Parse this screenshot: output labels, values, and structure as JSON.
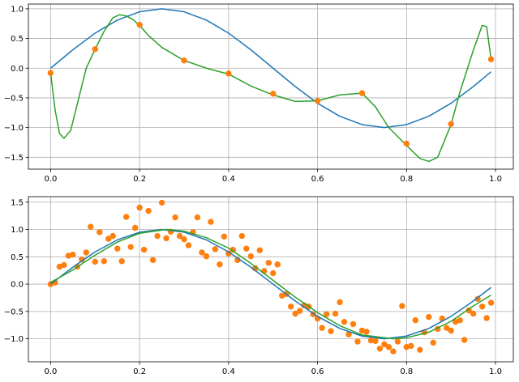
{
  "chart_data": [
    {
      "type": "line",
      "title": "",
      "xlabel": "",
      "ylabel": "",
      "xlim": [
        -0.05,
        1.04
      ],
      "ylim": [
        -1.7,
        1.08
      ],
      "xticks": [
        0.0,
        0.2,
        0.4,
        0.6,
        0.8,
        1.0
      ],
      "xtick_labels": [
        "0.0",
        "0.2",
        "0.4",
        "0.6",
        "0.8",
        "1.0"
      ],
      "yticks": [
        1.0,
        0.5,
        0.0,
        -0.5,
        -1.0,
        -1.5
      ],
      "ytick_labels": [
        "1.0",
        "0.5",
        "0.0",
        "−0.5",
        "−1.0",
        "−1.5"
      ],
      "grid": true,
      "colors": {
        "blue": "#1f77b4",
        "orange": "#ff7f0e",
        "green": "#2ca02c"
      },
      "series": [
        {
          "kind": "line",
          "color": "#1f77b4",
          "x": [
            0.0,
            0.05,
            0.1,
            0.15,
            0.2,
            0.25,
            0.3,
            0.35,
            0.4,
            0.45,
            0.5,
            0.55,
            0.6,
            0.65,
            0.7,
            0.75,
            0.8,
            0.85,
            0.9,
            0.95,
            0.99
          ],
          "y": [
            0.0,
            0.31,
            0.59,
            0.81,
            0.95,
            1.0,
            0.95,
            0.81,
            0.59,
            0.31,
            0.0,
            -0.31,
            -0.59,
            -0.81,
            -0.95,
            -1.0,
            -0.95,
            -0.81,
            -0.59,
            -0.31,
            -0.06
          ]
        },
        {
          "kind": "line",
          "color": "#2ca02c",
          "x": [
            0.0,
            0.01,
            0.02,
            0.03,
            0.045,
            0.06,
            0.08,
            0.1,
            0.12,
            0.14,
            0.155,
            0.17,
            0.185,
            0.2,
            0.22,
            0.25,
            0.3,
            0.35,
            0.4,
            0.45,
            0.5,
            0.55,
            0.6,
            0.65,
            0.7,
            0.73,
            0.76,
            0.8,
            0.83,
            0.85,
            0.87,
            0.9,
            0.92,
            0.95,
            0.97,
            0.98,
            0.99
          ],
          "y": [
            -0.08,
            -0.7,
            -1.1,
            -1.18,
            -1.05,
            -0.6,
            0.0,
            0.32,
            0.62,
            0.85,
            0.9,
            0.88,
            0.82,
            0.72,
            0.55,
            0.35,
            0.13,
            0.0,
            -0.1,
            -0.3,
            -0.45,
            -0.56,
            -0.55,
            -0.45,
            -0.42,
            -0.65,
            -1.0,
            -1.3,
            -1.52,
            -1.57,
            -1.5,
            -0.95,
            -0.4,
            0.3,
            0.72,
            0.7,
            0.15
          ]
        },
        {
          "kind": "scatter",
          "color": "#ff7f0e",
          "x": [
            0.0,
            0.1,
            0.2,
            0.3,
            0.4,
            0.5,
            0.6,
            0.7,
            0.8,
            0.9,
            0.99
          ],
          "y": [
            -0.08,
            0.32,
            0.73,
            0.13,
            -0.09,
            -0.43,
            -0.55,
            -0.42,
            -1.27,
            -0.94,
            0.15
          ]
        }
      ]
    },
    {
      "type": "line",
      "title": "",
      "xlabel": "",
      "ylabel": "",
      "xlim": [
        -0.05,
        1.04
      ],
      "ylim": [
        -1.42,
        1.6
      ],
      "xticks": [
        0.0,
        0.2,
        0.4,
        0.6,
        0.8,
        1.0
      ],
      "xtick_labels": [
        "0.0",
        "0.2",
        "0.4",
        "0.6",
        "0.8",
        "1.0"
      ],
      "yticks": [
        1.5,
        1.0,
        0.5,
        0.0,
        -0.5,
        -1.0
      ],
      "ytick_labels": [
        "1.5",
        "1.0",
        "0.5",
        "0.0",
        "−0.5",
        "−1.0"
      ],
      "grid": true,
      "colors": {
        "blue": "#1f77b4",
        "orange": "#ff7f0e",
        "green": "#2ca02c"
      },
      "series": [
        {
          "kind": "scatter",
          "color": "#ff7f0e",
          "x": [
            0.0,
            0.01,
            0.02,
            0.03,
            0.04,
            0.05,
            0.06,
            0.07,
            0.08,
            0.09,
            0.1,
            0.11,
            0.12,
            0.13,
            0.14,
            0.15,
            0.16,
            0.17,
            0.18,
            0.19,
            0.2,
            0.21,
            0.22,
            0.23,
            0.24,
            0.25,
            0.26,
            0.27,
            0.28,
            0.29,
            0.3,
            0.31,
            0.32,
            0.33,
            0.34,
            0.35,
            0.36,
            0.37,
            0.38,
            0.39,
            0.4,
            0.41,
            0.42,
            0.43,
            0.44,
            0.45,
            0.46,
            0.47,
            0.48,
            0.49,
            0.5,
            0.51,
            0.52,
            0.53,
            0.54,
            0.55,
            0.56,
            0.57,
            0.58,
            0.59,
            0.6,
            0.61,
            0.62,
            0.63,
            0.64,
            0.65,
            0.66,
            0.67,
            0.68,
            0.69,
            0.7,
            0.71,
            0.72,
            0.73,
            0.74,
            0.75,
            0.76,
            0.77,
            0.78,
            0.79,
            0.8,
            0.81,
            0.82,
            0.83,
            0.84,
            0.85,
            0.86,
            0.87,
            0.88,
            0.89,
            0.9,
            0.91,
            0.92,
            0.93,
            0.94,
            0.95,
            0.96,
            0.97,
            0.98,
            0.99
          ],
          "y": [
            0.0,
            0.03,
            0.32,
            0.35,
            0.52,
            0.54,
            0.32,
            0.45,
            0.58,
            1.05,
            0.41,
            0.95,
            0.42,
            0.83,
            0.88,
            0.65,
            0.42,
            1.23,
            0.68,
            1.03,
            1.4,
            0.63,
            1.34,
            0.44,
            0.88,
            1.49,
            0.84,
            0.96,
            1.22,
            0.88,
            0.82,
            0.71,
            0.95,
            1.22,
            0.58,
            0.51,
            1.14,
            0.64,
            0.36,
            0.87,
            0.56,
            0.63,
            0.44,
            0.88,
            0.65,
            0.51,
            0.29,
            0.62,
            0.24,
            0.39,
            0.2,
            0.36,
            -0.21,
            -0.18,
            -0.41,
            -0.54,
            -0.49,
            -0.39,
            -0.41,
            -0.55,
            -0.63,
            -0.8,
            -0.55,
            -0.86,
            -0.54,
            -0.33,
            -0.69,
            -0.92,
            -0.73,
            -1.05,
            -0.85,
            -0.87,
            -1.03,
            -1.04,
            -1.18,
            -1.1,
            -1.15,
            -1.23,
            -1.05,
            -0.4,
            -1.15,
            -1.13,
            -0.66,
            -1.2,
            -0.88,
            -0.6,
            -1.07,
            -0.82,
            -0.63,
            -0.8,
            -0.85,
            -0.69,
            -0.66,
            -1.02,
            -0.48,
            -0.54,
            -0.27,
            -0.41,
            -0.62,
            -0.34
          ]
        },
        {
          "kind": "line",
          "color": "#1f77b4",
          "x": [
            0.0,
            0.05,
            0.1,
            0.15,
            0.2,
            0.25,
            0.3,
            0.35,
            0.4,
            0.45,
            0.5,
            0.55,
            0.6,
            0.65,
            0.7,
            0.75,
            0.8,
            0.85,
            0.9,
            0.95,
            0.99
          ],
          "y": [
            0.0,
            0.31,
            0.59,
            0.81,
            0.95,
            1.0,
            0.95,
            0.81,
            0.59,
            0.31,
            0.0,
            -0.31,
            -0.59,
            -0.81,
            -0.95,
            -1.0,
            -0.95,
            -0.81,
            -0.59,
            -0.31,
            -0.06
          ]
        },
        {
          "kind": "line",
          "color": "#2ca02c",
          "x": [
            0.0,
            0.05,
            0.1,
            0.15,
            0.2,
            0.26,
            0.3,
            0.35,
            0.4,
            0.45,
            0.5,
            0.55,
            0.6,
            0.65,
            0.7,
            0.77,
            0.8,
            0.85,
            0.9,
            0.95,
            0.99
          ],
          "y": [
            0.03,
            0.26,
            0.53,
            0.77,
            0.93,
            1.0,
            0.97,
            0.85,
            0.66,
            0.38,
            0.07,
            -0.24,
            -0.52,
            -0.76,
            -0.93,
            -1.0,
            -0.98,
            -0.88,
            -0.68,
            -0.4,
            -0.2
          ]
        }
      ]
    }
  ]
}
